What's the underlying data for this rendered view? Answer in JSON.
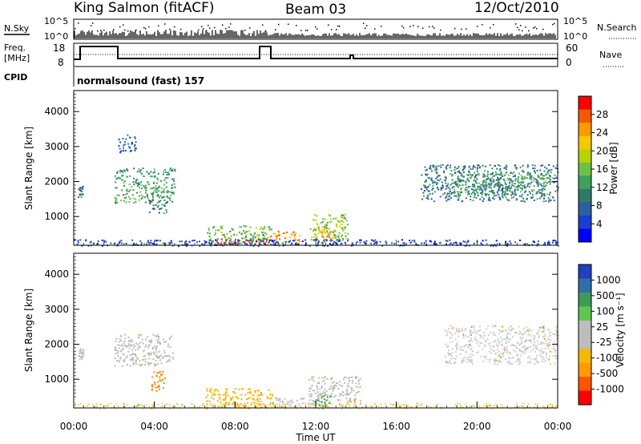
{
  "header": {
    "station": "King Salmon (fitACF)",
    "beam": "Beam 03",
    "date": "12/Oct/2010"
  },
  "side_labels": {
    "nsky": "N.Sky",
    "freq": "Freq.",
    "mhz": "[MHz]",
    "cpid": "CPID",
    "nsearch": "N.Search",
    "nave": "Nave"
  },
  "cpid_text": "normalsound (fast) 157",
  "nsky_ticks": [
    "10^5",
    "10^0"
  ],
  "nsearch_ticks": [
    "10^5",
    "10^0"
  ],
  "freq_ticks": [
    "18",
    "8"
  ],
  "nave_ticks": [
    "60",
    "0"
  ],
  "chart_data": [
    {
      "type": "heatmap",
      "name": "power-panel",
      "ylabel": "Slant Range [km]",
      "ylim": [
        180,
        4600
      ],
      "yticks": [
        "4000",
        "3000",
        "2000",
        "1000"
      ],
      "ytick_values": [
        4000,
        3000,
        2000,
        1000
      ],
      "xlim": [
        0,
        24
      ],
      "colorbar_label": "Power [dB]",
      "colorbar_ticks": [
        "28",
        "24",
        "20",
        "16",
        "12",
        "8",
        "4"
      ],
      "colorbar_colors": [
        "#ff0000",
        "#f25a00",
        "#ff9900",
        "#f5c800",
        "#b8d200",
        "#6fbf4a",
        "#3fa060",
        "#2f7a6a",
        "#2f5fa0",
        "#1a3fd0",
        "#0000ff"
      ],
      "regions": [
        {
          "x0": 0.2,
          "x1": 0.45,
          "y0": 1550,
          "y1": 1900,
          "level": 8
        },
        {
          "x0": 2.2,
          "x1": 3.1,
          "y0": 2850,
          "y1": 3350,
          "level": 6
        },
        {
          "x0": 2.0,
          "x1": 5.0,
          "y0": 1400,
          "y1": 2400,
          "level": 12
        },
        {
          "x0": 3.7,
          "x1": 4.6,
          "y0": 1100,
          "y1": 1500,
          "level": 8
        },
        {
          "x0": 6.6,
          "x1": 9.8,
          "y0": 250,
          "y1": 750,
          "level": 14
        },
        {
          "x0": 7.0,
          "x1": 9.6,
          "y0": 200,
          "y1": 380,
          "level": 28
        },
        {
          "x0": 9.7,
          "x1": 11.2,
          "y0": 250,
          "y1": 600,
          "level": 24
        },
        {
          "x0": 11.7,
          "x1": 13.6,
          "y0": 300,
          "y1": 1100,
          "level": 16
        },
        {
          "x0": 12.0,
          "x1": 12.8,
          "y0": 280,
          "y1": 700,
          "level": 24
        },
        {
          "x0": 17.2,
          "x1": 24.0,
          "y0": 1450,
          "y1": 2500,
          "level": 8
        },
        {
          "x0": 18.6,
          "x1": 23.6,
          "y0": 1650,
          "y1": 2250,
          "level": 12
        },
        {
          "x0": 0.0,
          "x1": 24.0,
          "y0": 180,
          "y1": 360,
          "level": 4
        }
      ]
    },
    {
      "type": "heatmap",
      "name": "velocity-panel",
      "ylabel": "Slant Range [km]",
      "ylim": [
        180,
        4600
      ],
      "yticks": [
        "4000",
        "3000",
        "2000",
        "1000"
      ],
      "ytick_values": [
        4000,
        3000,
        2000,
        1000
      ],
      "xlim": [
        0,
        24
      ],
      "xlabel": "Time UT",
      "xticks": [
        "00:00",
        "04:00",
        "08:00",
        "12:00",
        "16:00",
        "20:00",
        "00:00"
      ],
      "xtick_values": [
        0,
        4,
        8,
        12,
        16,
        20,
        24
      ],
      "colorbar_label": "Velocity [m s⁻¹]",
      "colorbar_ticks": [
        "1000",
        "500",
        "100",
        "25",
        "-25",
        "-100",
        "-500",
        "-1000"
      ],
      "colorbar_colors": [
        "#2040c0",
        "#2f6fa8",
        "#3f9a5a",
        "#5cc850",
        "#bdbdbd",
        "#bdbdbd",
        "#f5b800",
        "#ff9a00",
        "#ff5500",
        "#ff0000"
      ],
      "regions": [
        {
          "x0": 0.2,
          "x1": 0.45,
          "y0": 1550,
          "y1": 1900,
          "color": "#bdbdbd"
        },
        {
          "x0": 2.0,
          "x1": 4.9,
          "y0": 1400,
          "y1": 2300,
          "color": "#bdbdbd"
        },
        {
          "x0": 3.8,
          "x1": 4.5,
          "y0": 650,
          "y1": 1250,
          "color": "#ff8000"
        },
        {
          "x0": 6.5,
          "x1": 9.9,
          "y0": 220,
          "y1": 750,
          "color": "#f5b800"
        },
        {
          "x0": 9.8,
          "x1": 11.5,
          "y0": 220,
          "y1": 500,
          "color": "#bdbdbd"
        },
        {
          "x0": 11.6,
          "x1": 14.2,
          "y0": 300,
          "y1": 1100,
          "color": "#bdbdbd"
        },
        {
          "x0": 11.9,
          "x1": 12.7,
          "y0": 250,
          "y1": 550,
          "color": "#3f9a5a"
        },
        {
          "x0": 18.4,
          "x1": 24.0,
          "y0": 1450,
          "y1": 2550,
          "color": "#cfcfcf"
        },
        {
          "x0": 0.0,
          "x1": 24.0,
          "y0": 180,
          "y1": 330,
          "color": "#f0d070"
        }
      ]
    }
  ]
}
